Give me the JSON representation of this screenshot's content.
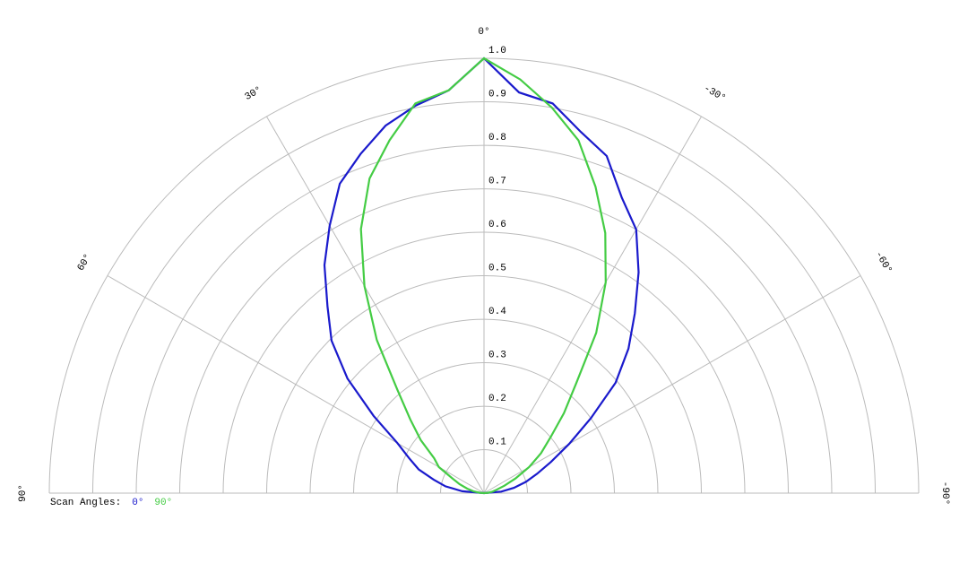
{
  "chart_data": {
    "type": "polar",
    "theta": [
      -90,
      -85,
      -80,
      -75,
      -70,
      -65,
      -60,
      -55,
      -50,
      -45,
      -40,
      -35,
      -30,
      -25,
      -20,
      -15,
      -10,
      -5,
      0,
      5,
      10,
      15,
      20,
      25,
      30,
      35,
      40,
      45,
      50,
      55,
      60,
      65,
      70,
      75,
      80,
      85,
      90
    ],
    "series": [
      {
        "name": "0°",
        "color": "#1a1acc",
        "values": [
          0,
          0.04,
          0.07,
          0.1,
          0.13,
          0.17,
          0.226,
          0.3,
          0.395,
          0.47,
          0.54,
          0.62,
          0.7,
          0.75,
          0.825,
          0.86,
          0.91,
          0.925,
          1.0,
          0.93,
          0.905,
          0.875,
          0.83,
          0.785,
          0.71,
          0.64,
          0.56,
          0.496,
          0.41,
          0.31,
          0.23,
          0.19,
          0.16,
          0.12,
          0.09,
          0.05,
          0
        ]
      },
      {
        "name": "90°",
        "color": "#44cc44",
        "values": [
          0,
          0.01,
          0.02,
          0.03,
          0.05,
          0.08,
          0.12,
          0.16,
          0.2,
          0.26,
          0.33,
          0.45,
          0.56,
          0.66,
          0.75,
          0.84,
          0.9,
          0.955,
          1.0,
          0.93,
          0.91,
          0.84,
          0.77,
          0.67,
          0.55,
          0.43,
          0.31,
          0.24,
          0.19,
          0.14,
          0.12,
          0.08,
          0.06,
          0.04,
          0.025,
          0.01,
          0
        ]
      }
    ],
    "rlim": [
      0,
      1
    ],
    "rticks": [
      0.1,
      0.2,
      0.3,
      0.4,
      0.5,
      0.6,
      0.7,
      0.8,
      0.9,
      {
        "value": 1,
        "label": "1.0"
      }
    ],
    "thetalim": [
      -90,
      90
    ],
    "thetaticks": [
      {
        "value": 90,
        "label": "90°"
      },
      {
        "value": 60,
        "label": "60°"
      },
      {
        "value": 30,
        "label": "30°"
      },
      {
        "value": 0,
        "label": "0°"
      },
      {
        "value": -30,
        "label": "-30°"
      },
      {
        "value": -60,
        "label": "-60°"
      },
      {
        "value": -90,
        "label": "-90°"
      }
    ],
    "legend_title": "Scan Angles:",
    "grid": true
  }
}
